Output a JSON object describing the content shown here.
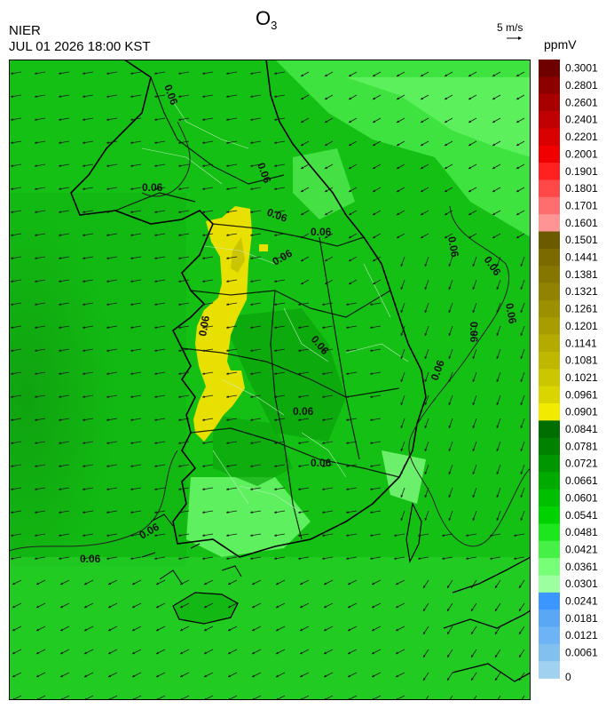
{
  "header": {
    "agency": "NIER",
    "datetime": "JUL 01 2026 18:00 KST",
    "title_main": "O",
    "title_sub": "3",
    "wind_reference": "5 m/s",
    "unit": "ppmV"
  },
  "legend": {
    "labels": [
      "0.3001",
      "0.2801",
      "0.2601",
      "0.2401",
      "0.2201",
      "0.2001",
      "0.1901",
      "0.1801",
      "0.1701",
      "0.1601",
      "0.1501",
      "0.1441",
      "0.1381",
      "0.1321",
      "0.1261",
      "0.1201",
      "0.1141",
      "0.1081",
      "0.1021",
      "0.0961",
      "0.0901",
      "0.0841",
      "0.0781",
      "0.0721",
      "0.0661",
      "0.0601",
      "0.0541",
      "0.0481",
      "0.0421",
      "0.0361",
      "0.0301",
      "0.0241",
      "0.0181",
      "0.0121",
      "0.0061",
      "0"
    ],
    "colors": [
      "#6e0000",
      "#8c0000",
      "#a80000",
      "#c00000",
      "#d80000",
      "#f00000",
      "#ff2020",
      "#ff4848",
      "#ff6e6e",
      "#ff9494",
      "#6b5a00",
      "#7a6a00",
      "#857600",
      "#918200",
      "#9c8f00",
      "#a89c00",
      "#b4aa00",
      "#c0b800",
      "#ccc600",
      "#dad400",
      "#f2ea00",
      "#006e00",
      "#008200",
      "#009600",
      "#00aa00",
      "#00be00",
      "#00d200",
      "#1ee61e",
      "#46f046",
      "#78ff78",
      "#9cffa0",
      "#3c96ff",
      "#5aa8f5",
      "#6cb4f5",
      "#82c0f0",
      "#a0d2f0"
    ]
  },
  "map": {
    "contour_labels": [
      "0.06",
      "0.06",
      "0.06",
      "0.06",
      "0.06",
      "0.06",
      "0.06",
      "0.06",
      "0.06",
      "0.06",
      "0.06",
      "0.06",
      "0.06",
      "0.06",
      "0.06",
      "0.06",
      "0.06"
    ]
  }
}
